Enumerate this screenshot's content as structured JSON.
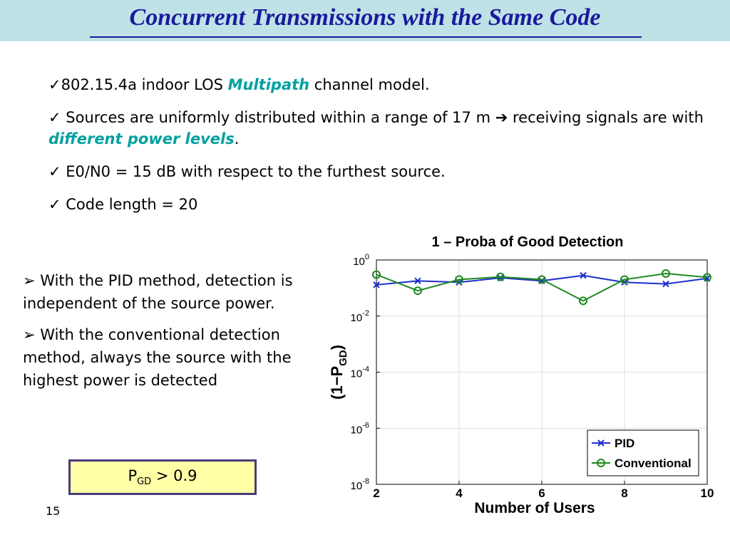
{
  "slide": {
    "title": "Concurrent Transmissions with the Same Code",
    "page_number": "15"
  },
  "bullets_top": [
    {
      "pre": "✓802.15.4a indoor LOS ",
      "highlight": "Multipath",
      "post": " channel model."
    },
    {
      "pre": "✓ Sources are uniformly distributed within a range of 17 m ➔ receiving signals are with ",
      "highlight": "different power levels",
      "post": "."
    },
    {
      "pre": "✓ E0/N0 = 15 dB with respect to the furthest source.",
      "highlight": "",
      "post": ""
    },
    {
      "pre": "✓ Code length = 20",
      "highlight": "",
      "post": ""
    }
  ],
  "bullets_left": [
    "➢ With the PID method, detection is independent of the source power.",
    "➢ With the conventional detection method, always the source with the highest power is detected"
  ],
  "formula": {
    "p": "P",
    "sub": "GD",
    "rest": " > 0.9"
  },
  "colors": {
    "title": "#1a1a9e",
    "title_bar": "#bfe2e6",
    "highlight": "#00a0a0",
    "pid": "#1f2fcf",
    "conventional": "#1f8a1f",
    "formula_bg": "#ffffa8"
  },
  "chart_data": {
    "type": "line",
    "title": "1 – Proba of Good Detection",
    "xlabel": "Number of Users",
    "ylabel_main": "(1−P",
    "ylabel_sub": "GD",
    "ylabel_end": ")",
    "xlim": [
      2,
      10
    ],
    "ylim_log10": [
      -8,
      0
    ],
    "y_log_scale": true,
    "grid": true,
    "legend_position": "bottom-right",
    "x_ticks": [
      2,
      4,
      6,
      8,
      10
    ],
    "y_ticks_exp": [
      0,
      -2,
      -4,
      -6,
      -8
    ],
    "x": [
      2,
      3,
      4,
      5,
      6,
      7,
      8,
      9,
      10
    ],
    "series": [
      {
        "name": "PID",
        "marker": "x",
        "values": [
          0.13,
          0.18,
          0.16,
          0.23,
          0.18,
          0.28,
          0.16,
          0.14,
          0.22
        ]
      },
      {
        "name": "Conventional",
        "marker": "o",
        "values": [
          0.3,
          0.08,
          0.2,
          0.25,
          0.2,
          0.035,
          0.2,
          0.33,
          0.24
        ]
      }
    ]
  }
}
